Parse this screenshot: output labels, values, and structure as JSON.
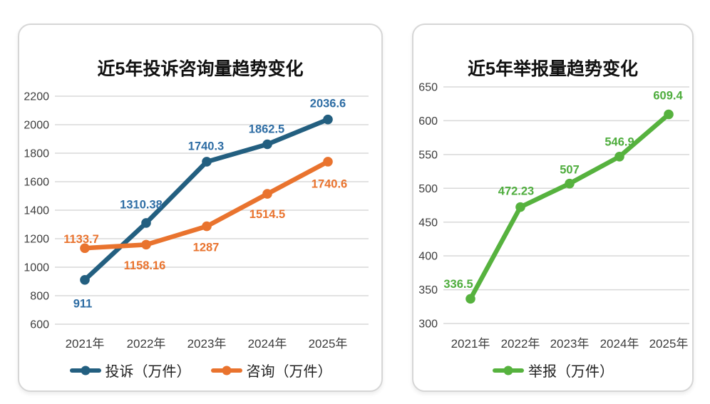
{
  "page": {
    "background": "#ffffff"
  },
  "style": {
    "grid_color": "#d8d8d8",
    "tick_color": "#3d3d3d",
    "legend_text_color": "#222222",
    "title_color": "#111111",
    "card_border_color": "#d6d6d6"
  },
  "chart_data": [
    {
      "type": "line",
      "title": "近5年投诉咨询量趋势变化",
      "categories": [
        "2021年",
        "2022年",
        "2023年",
        "2024年",
        "2025年"
      ],
      "ylim": [
        600,
        2200
      ],
      "ytick_step": 200,
      "grid": true,
      "legend_position": "bottom",
      "series": [
        {
          "name": "投诉（万件）",
          "color": "#235f80",
          "label_color": "#2e6da4",
          "values": [
            911,
            1310.38,
            1740.3,
            1862.5,
            2036.6
          ],
          "labels": [
            "911",
            "1310.38",
            "1740.3",
            "1862.5",
            "2036.6"
          ],
          "label_offsets": [
            [
              -3,
              33
            ],
            [
              -7,
              -26
            ],
            [
              -1,
              -22
            ],
            [
              -1,
              -22
            ],
            [
              0,
              -23
            ]
          ]
        },
        {
          "name": "咨询（万件）",
          "color": "#e9732e",
          "label_color": "#e9732e",
          "values": [
            1133.7,
            1158.16,
            1287,
            1514.5,
            1740.6
          ],
          "labels": [
            "1133.7",
            "1158.16",
            "1287",
            "1514.5",
            "1740.6"
          ],
          "label_offsets": [
            [
              -5,
              -13
            ],
            [
              -2,
              29
            ],
            [
              -1,
              29
            ],
            [
              0,
              28
            ],
            [
              2,
              31
            ]
          ]
        }
      ]
    },
    {
      "type": "line",
      "title": "近5年举报量趋势变化",
      "categories": [
        "2021年",
        "2022年",
        "2023年",
        "2024年",
        "2025年"
      ],
      "ylim": [
        300,
        650
      ],
      "ytick_step": 50,
      "grid": true,
      "legend_position": "bottom",
      "series": [
        {
          "name": "举报（万件）",
          "color": "#56b23e",
          "label_color": "#4fad3e",
          "values": [
            336.5,
            472.23,
            507,
            546.9,
            609.4
          ],
          "labels": [
            "336.5",
            "472.23",
            "507",
            "546.9",
            "609.4"
          ],
          "label_offsets": [
            [
              -17,
              -21
            ],
            [
              -6,
              -23
            ],
            [
              0,
              -20
            ],
            [
              0,
              -21
            ],
            [
              -1,
              -27
            ]
          ]
        }
      ]
    }
  ]
}
